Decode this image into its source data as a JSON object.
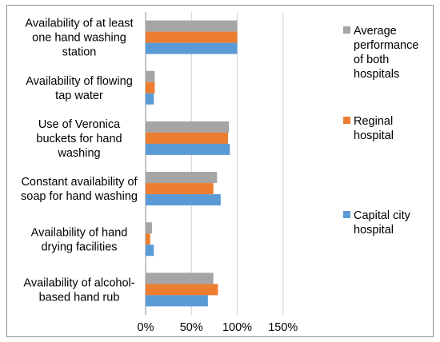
{
  "chart_data": {
    "type": "bar",
    "orientation": "horizontal",
    "categories": [
      "Availability of at least one hand washing station",
      "Availability of flowing tap water",
      "Use of Veronica buckets for hand washing",
      "Constant availability of soap for hand washing",
      "Availability of hand drying facilities",
      "Availability of alcohol-based hand rub"
    ],
    "category_lines": [
      [
        "Availability of at least",
        "one hand washing",
        "station"
      ],
      [
        "Availability of flowing",
        "tap water"
      ],
      [
        "Use of Veronica",
        "buckets for hand",
        "washing"
      ],
      [
        "Constant availability of",
        "soap for hand washing"
      ],
      [
        "Availability of hand",
        "drying facilities"
      ],
      [
        "Availability of alcohol-",
        "based hand rub"
      ]
    ],
    "series": [
      {
        "name": "Average performance of both hospitals",
        "legend_lines": [
          "Average",
          "performance",
          "of both",
          "hospitals"
        ],
        "color": "#a5a5a5",
        "values": [
          100,
          10,
          91,
          78,
          7,
          74
        ]
      },
      {
        "name": "Reginal hospital",
        "legend_lines": [
          "Reginal",
          "hospital"
        ],
        "color": "#ed7d31",
        "values": [
          100,
          10,
          90,
          74,
          5,
          79
        ]
      },
      {
        "name": "Capital city hospital",
        "legend_lines": [
          "Capital city",
          "hospital"
        ],
        "color": "#5b9bd5",
        "values": [
          100,
          9,
          92,
          82,
          9,
          68
        ]
      }
    ],
    "x_ticks": [
      "0%",
      "50%",
      "100%",
      "150%"
    ],
    "x_tick_values": [
      0,
      50,
      100,
      150
    ],
    "xlim": [
      0,
      150
    ],
    "grid": true,
    "legend_position": "right"
  }
}
